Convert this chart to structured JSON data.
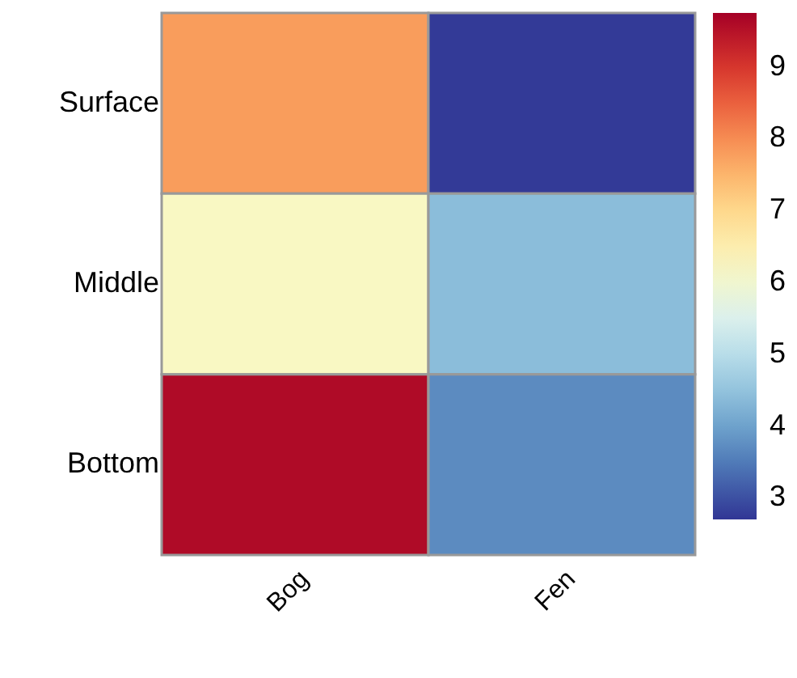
{
  "chart_data": {
    "type": "heatmap",
    "categories": [
      "Bog",
      "Fen"
    ],
    "y_categories": [
      "Surface",
      "Middle",
      "Bottom"
    ],
    "cells": [
      [
        7.8,
        2.75
      ],
      [
        6.2,
        4.4
      ],
      [
        9.6,
        3.7
      ]
    ],
    "clim": [
      2.7,
      9.75
    ],
    "cticks": [
      3,
      4,
      5,
      6,
      7,
      8,
      9
    ]
  }
}
